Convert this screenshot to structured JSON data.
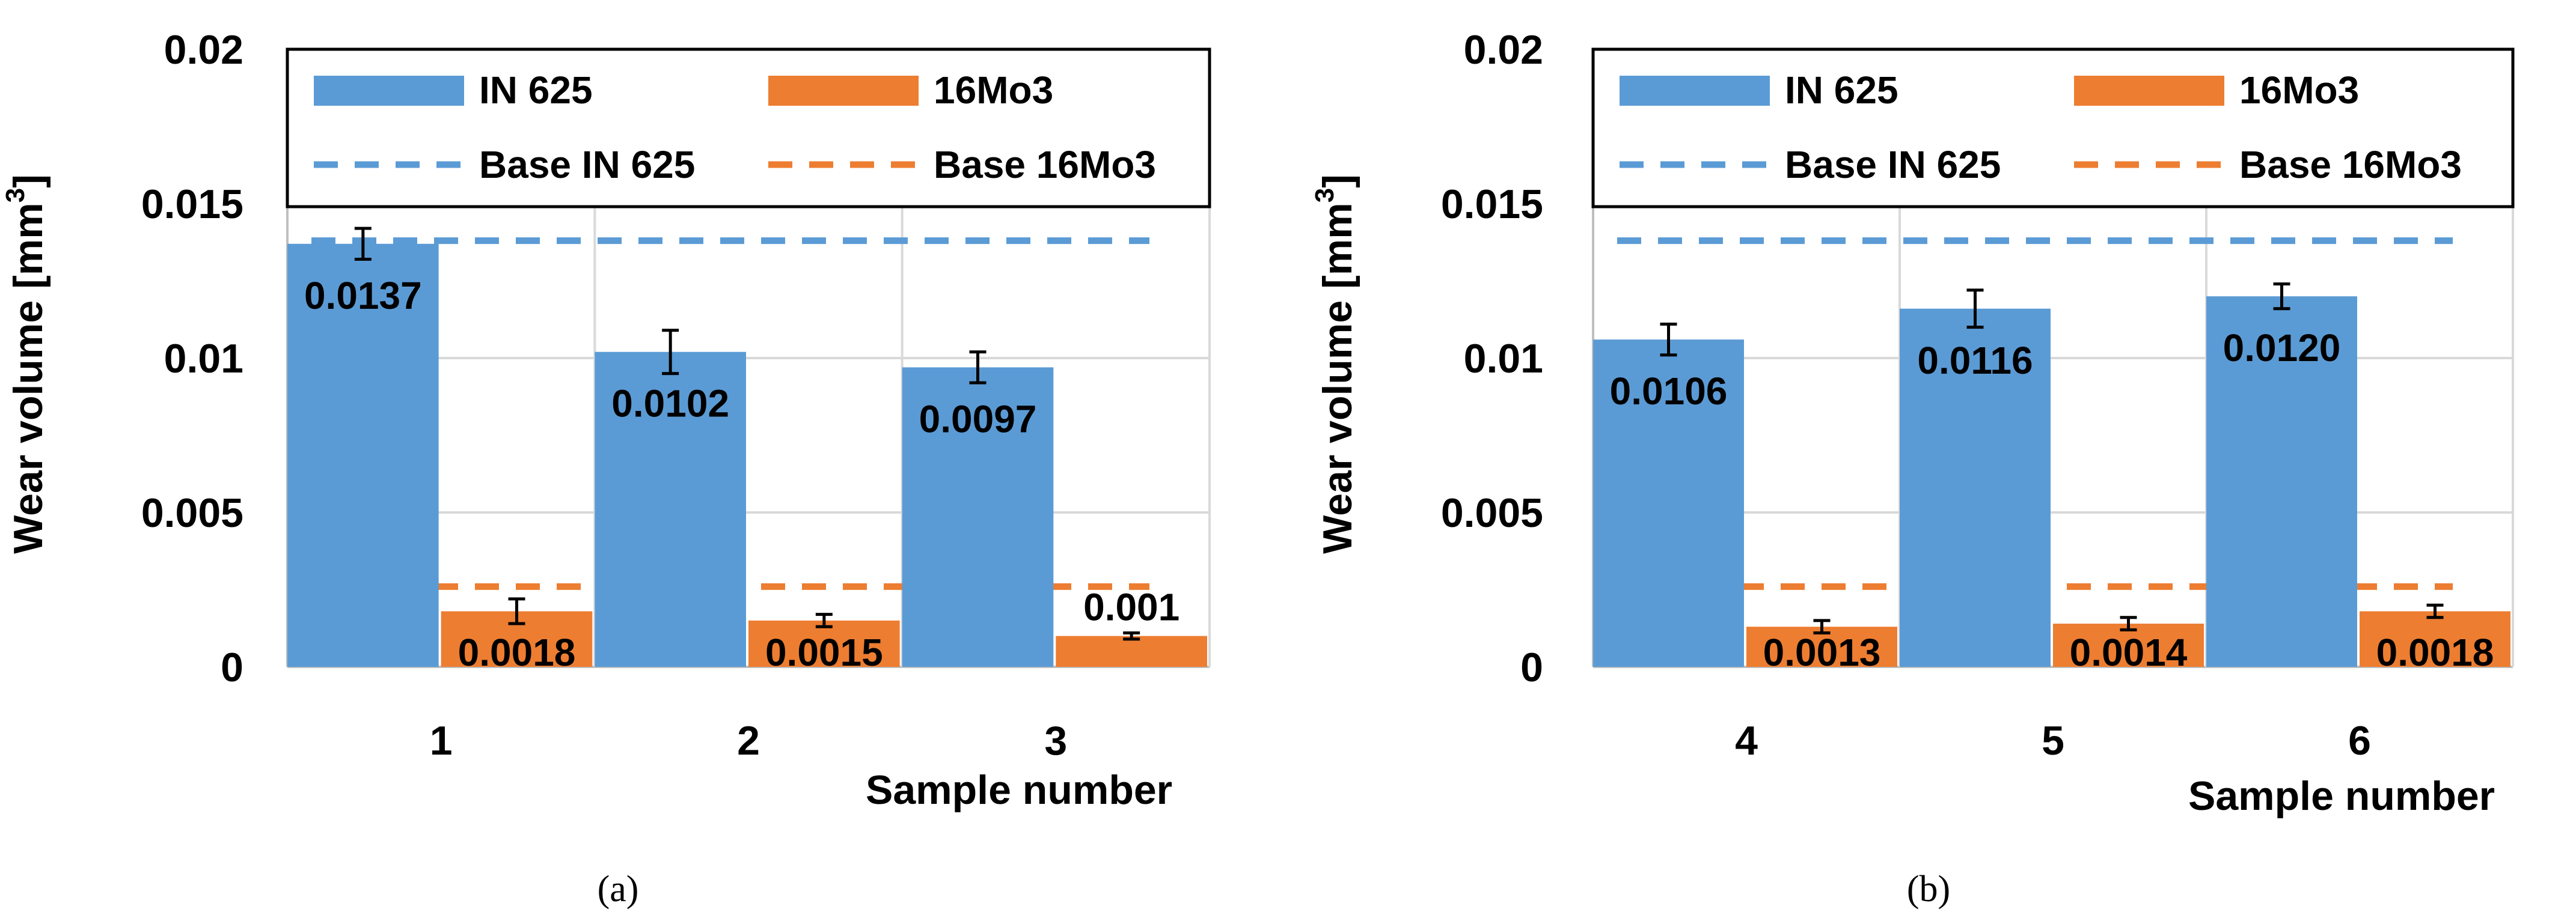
{
  "colors": {
    "in625": "#5b9bd5",
    "mo3": "#ed7d31",
    "grid": "#d9d9d9",
    "axis": "#bfbfbf"
  },
  "legend": {
    "in625": "IN 625",
    "mo3": "16Mo3",
    "base_in625": "Base IN 625",
    "base_mo3": "Base 16Mo3"
  },
  "chart_data": [
    {
      "type": "bar",
      "panel_label": "(a)",
      "categories": [
        "1",
        "2",
        "3"
      ],
      "series": [
        {
          "name": "IN 625",
          "values": [
            0.0137,
            0.0102,
            0.0097
          ],
          "labels": [
            "0.0137",
            "0.0102",
            "0.0097"
          ],
          "errors": [
            0.0005,
            0.0007,
            0.0005
          ]
        },
        {
          "name": "16Mo3",
          "values": [
            0.0018,
            0.0015,
            0.001
          ],
          "labels": [
            "0.0018",
            "0.0015",
            "0.001"
          ],
          "errors": [
            0.0004,
            0.0002,
            0.0001
          ]
        }
      ],
      "baselines": [
        {
          "name": "Base IN 625",
          "value": 0.0138
        },
        {
          "name": "Base 16Mo3",
          "value": 0.0026
        }
      ],
      "ylabel": "Wear volume  [mm",
      "ylabel_sup": "3",
      "ylabel_end": "]",
      "xlabel": "Sample number",
      "ylim": [
        0,
        0.02
      ],
      "yticks": [
        "0",
        "0.005",
        "0.01",
        "0.015",
        "0.02"
      ]
    },
    {
      "type": "bar",
      "panel_label": "(b)",
      "categories": [
        "4",
        "5",
        "6"
      ],
      "series": [
        {
          "name": "IN 625",
          "values": [
            0.0106,
            0.0116,
            0.012
          ],
          "labels": [
            "0.0106",
            "0.0116",
            "0.0120"
          ],
          "errors": [
            0.0005,
            0.0006,
            0.0004
          ]
        },
        {
          "name": "16Mo3",
          "values": [
            0.0013,
            0.0014,
            0.0018
          ],
          "labels": [
            "0.0013",
            "0.0014",
            "0.0018"
          ],
          "errors": [
            0.0002,
            0.0002,
            0.0002
          ]
        }
      ],
      "baselines": [
        {
          "name": "Base IN 625",
          "value": 0.0138
        },
        {
          "name": "Base 16Mo3",
          "value": 0.0026
        }
      ],
      "ylabel": "Wear volume  [mm",
      "ylabel_sup": "3",
      "ylabel_end": "]",
      "xlabel": "Sample number",
      "ylim": [
        0,
        0.02
      ],
      "yticks": [
        "0",
        "0.005",
        "0.01",
        "0.015",
        "0.02"
      ]
    }
  ]
}
